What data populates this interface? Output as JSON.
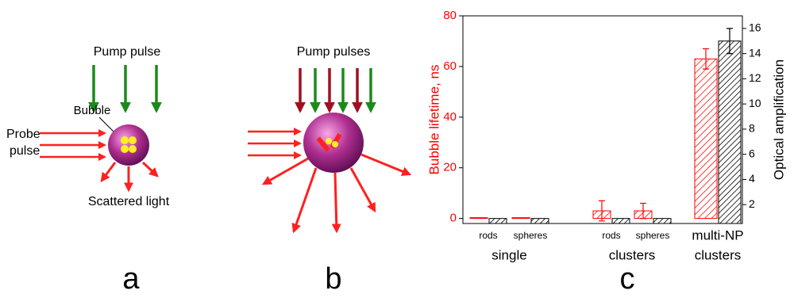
{
  "panel_labels": [
    "a",
    "b",
    "c"
  ],
  "diagram_a": {
    "pump_label": "Pump pulse",
    "bubble_label": "Bubble",
    "probe_label": [
      "Probe",
      "pulse"
    ],
    "scattered_label": "Scattered light"
  },
  "diagram_b": {
    "pump_label": "Pump pulses"
  },
  "chart_data": {
    "type": "bar",
    "ylabel": "Bubble lifetime, ns",
    "y2label": "Optical amplification",
    "groups": [
      {
        "name": "single",
        "categories": [
          "rods",
          "spheres"
        ]
      },
      {
        "name": "clusters",
        "categories": [
          "rods",
          "spheres"
        ]
      },
      {
        "name": "clusters",
        "categories": [
          "multi-NP"
        ]
      }
    ],
    "series": [
      {
        "color": "#ff0000",
        "values": [
          0.3,
          0.3,
          3,
          3,
          63
        ],
        "errors": [
          null,
          null,
          4,
          3,
          4
        ]
      },
      {
        "color": "#000000",
        "axis": "y2",
        "values": [
          0.9,
          0.9,
          0.9,
          0.9,
          15
        ],
        "errors": [
          null,
          null,
          null,
          null,
          1
        ]
      }
    ],
    "ylim": [
      -2,
      80
    ],
    "yticks": [
      0,
      20,
      40,
      60,
      80
    ],
    "ycolor": "#ff0000",
    "y2lim": [
      0.5,
      17
    ],
    "y2ticks": [
      2,
      4,
      6,
      8,
      10,
      12,
      14,
      16
    ]
  }
}
